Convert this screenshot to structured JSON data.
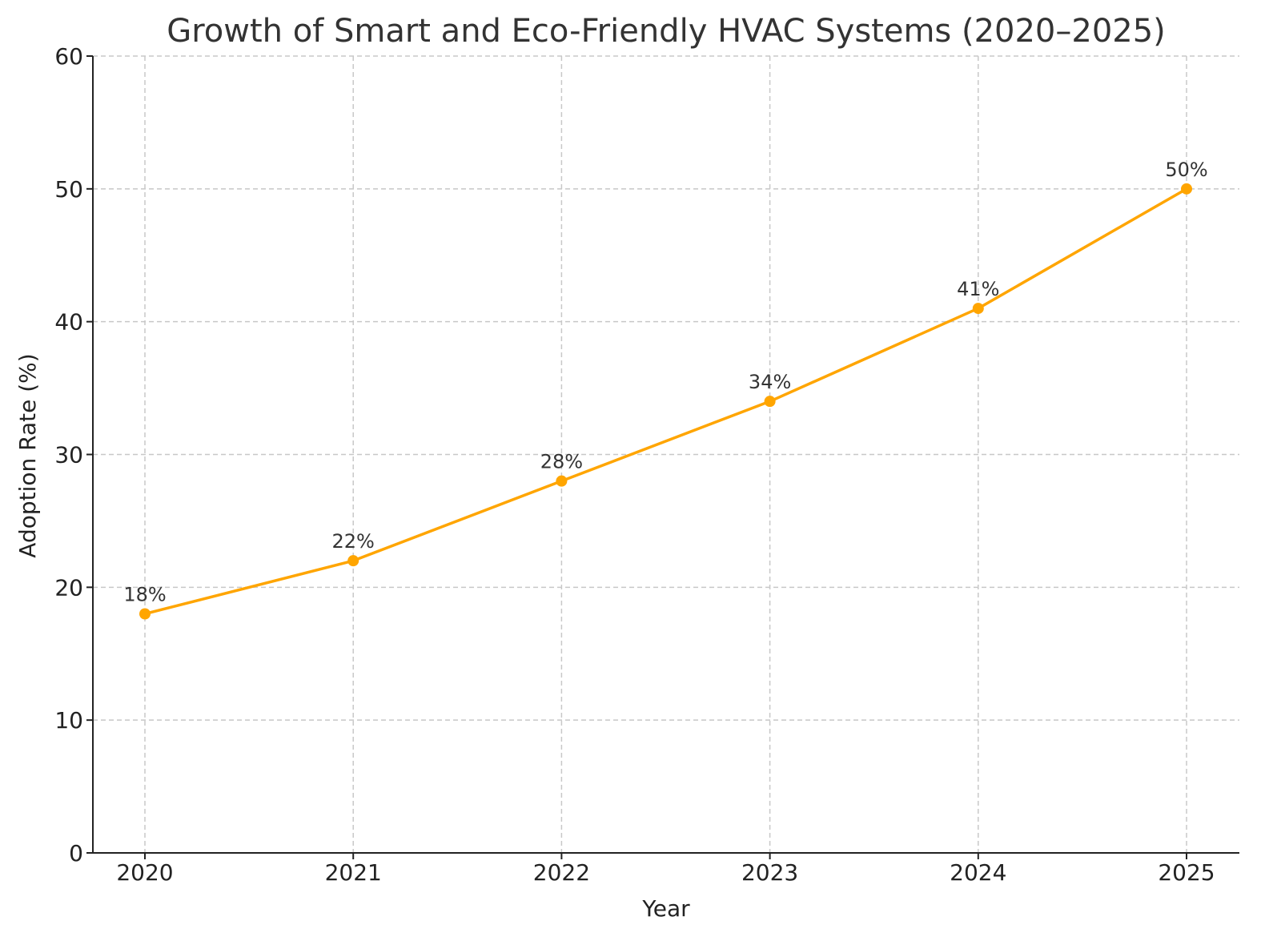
{
  "chart_data": {
    "type": "line",
    "title": "Growth of Smart and Eco-Friendly HVAC Systems (2020–2025)",
    "xlabel": "Year",
    "ylabel": "Adoption Rate (%)",
    "x": [
      "2020",
      "2021",
      "2022",
      "2023",
      "2024",
      "2025"
    ],
    "series": [
      {
        "values": [
          18,
          22,
          28,
          34,
          41,
          50
        ],
        "data_labels": [
          "18%",
          "22%",
          "28%",
          "34%",
          "41%",
          "50%"
        ],
        "color": "#FFA500",
        "marker": "circle"
      }
    ],
    "ylim": [
      0,
      60
    ],
    "yticks": [
      0,
      10,
      20,
      30,
      40,
      50,
      60
    ],
    "grid": true
  }
}
